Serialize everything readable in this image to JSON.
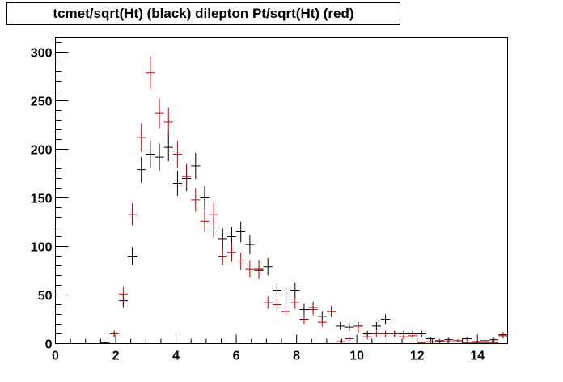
{
  "chart_data": {
    "type": "scatter",
    "title": "tcmet/sqrt(Ht) (black) dilepton Pt/sqrt(Ht) (red)",
    "xlabel": "",
    "ylabel": "",
    "xlim": [
      0,
      15
    ],
    "ylim": [
      0,
      315
    ],
    "bin_width": 0.3,
    "x_ticks": [
      0,
      2,
      4,
      6,
      8,
      10,
      12,
      14
    ],
    "x_tick_labels": [
      "0",
      "2",
      "4",
      "6",
      "8",
      "10",
      "12",
      "14"
    ],
    "y_ticks": [
      0,
      50,
      100,
      150,
      200,
      250,
      300
    ],
    "y_tick_labels": [
      "0",
      "50",
      "100",
      "150",
      "200",
      "250",
      "300"
    ],
    "grid": false,
    "legend": "none",
    "series": [
      {
        "color": "#000000",
        "x": [
          1.65,
          1.95,
          2.25,
          2.55,
          2.85,
          3.15,
          3.45,
          3.75,
          4.05,
          4.35,
          4.65,
          4.95,
          5.25,
          5.55,
          5.85,
          6.15,
          6.45,
          6.75,
          7.05,
          7.35,
          7.65,
          7.95,
          8.25,
          8.55,
          8.85,
          9.15,
          9.45,
          9.75,
          10.05,
          10.35,
          10.65,
          10.95,
          11.25,
          11.55,
          11.85,
          12.15,
          12.45,
          12.75,
          13.05,
          13.35,
          13.65,
          13.95,
          14.25,
          14.55,
          14.85
        ],
        "y": [
          1,
          10,
          44,
          90,
          179,
          195,
          192,
          202,
          165,
          170,
          183,
          150,
          120,
          108,
          110,
          115,
          102,
          77,
          79,
          55,
          50,
          55,
          35,
          37,
          28,
          33,
          18,
          17,
          18,
          10,
          18,
          25,
          10,
          10,
          10,
          10,
          5,
          3,
          4,
          3,
          5,
          2,
          3,
          4,
          9
        ]
      },
      {
        "color": "#cc0000",
        "x": [
          1.95,
          2.25,
          2.55,
          2.85,
          3.15,
          3.45,
          3.75,
          4.05,
          4.35,
          4.65,
          4.95,
          5.25,
          5.55,
          5.85,
          6.15,
          6.45,
          6.75,
          7.05,
          7.35,
          7.65,
          7.95,
          8.25,
          8.55,
          8.85,
          9.15,
          9.45,
          9.75,
          10.05,
          10.35,
          10.65,
          10.95,
          11.25,
          11.55,
          11.85,
          12.15,
          12.45,
          12.75,
          13.05,
          13.35,
          13.65,
          13.95,
          14.25,
          14.55,
          14.85
        ],
        "y": [
          10,
          51,
          133,
          212,
          279,
          237,
          228,
          195,
          172,
          148,
          126,
          133,
          90,
          94,
          85,
          77,
          75,
          42,
          40,
          33,
          42,
          25,
          35,
          22,
          33,
          2,
          5,
          15,
          7,
          10,
          10,
          10,
          7,
          8,
          1,
          2,
          2,
          2,
          3,
          1,
          1,
          1,
          1,
          8
        ]
      }
    ]
  }
}
